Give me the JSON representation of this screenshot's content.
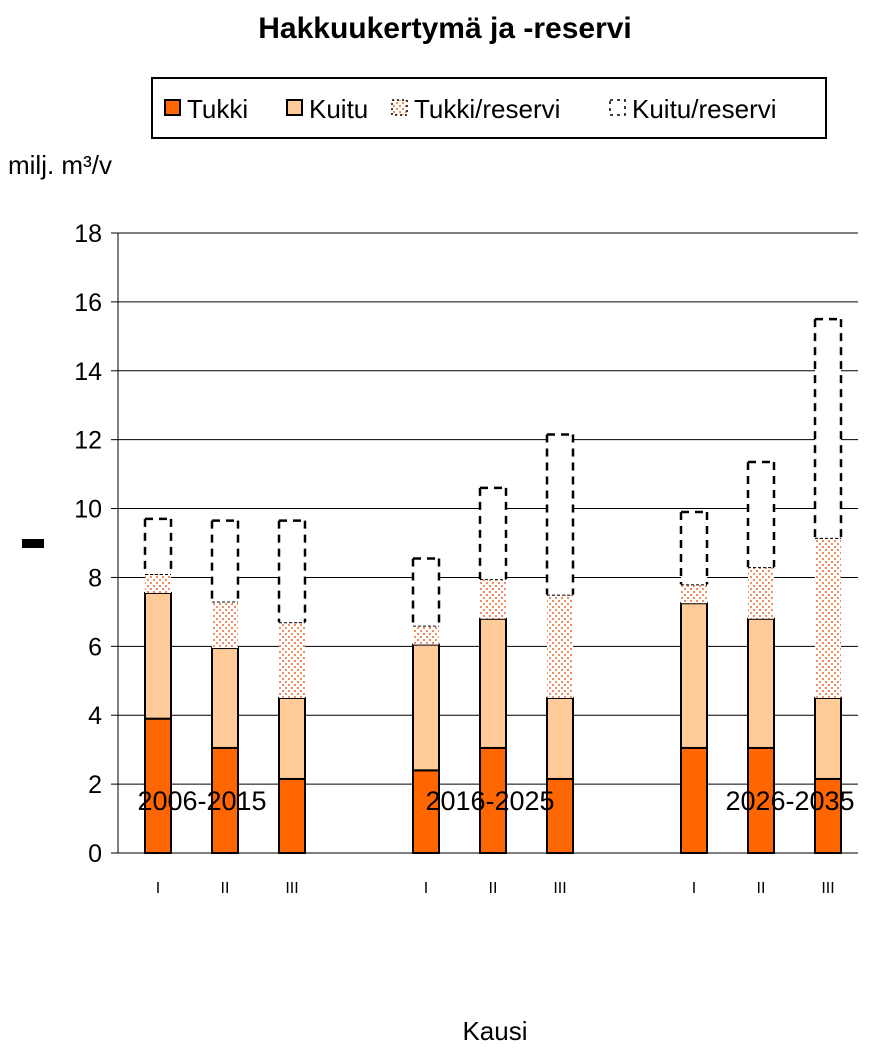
{
  "chart_data": {
    "type": "bar",
    "stacked": true,
    "title": "Hakkuukertymä ja -reservi",
    "ylabel": "milj. m³/v",
    "xlabel": "Kausi",
    "ylim": [
      0,
      18
    ],
    "yticks": [
      0,
      2,
      4,
      6,
      8,
      10,
      12,
      14,
      16,
      18
    ],
    "grid": true,
    "legend_position": "top",
    "groups": [
      "2006-2015",
      "2016-2025",
      "2026-2035"
    ],
    "categories": [
      "I",
      "II",
      "III",
      "I",
      "II",
      "III",
      "I",
      "II",
      "III"
    ],
    "series": [
      {
        "name": "Tukki",
        "color": "#ff6600",
        "pattern": "solid",
        "values": [
          3.9,
          3.05,
          2.15,
          2.4,
          3.05,
          2.15,
          3.05,
          3.05,
          2.15
        ]
      },
      {
        "name": "Kuitu",
        "color": "#ffcc99",
        "pattern": "solid",
        "values": [
          3.65,
          2.9,
          2.35,
          3.65,
          3.75,
          2.35,
          4.2,
          3.75,
          2.35
        ]
      },
      {
        "name": "Tukki/reservi",
        "color": "#f4a070",
        "pattern": "dots",
        "values": [
          0.55,
          1.35,
          2.2,
          0.55,
          1.15,
          3.0,
          0.55,
          1.5,
          4.65
        ]
      },
      {
        "name": "Kuitu/reservi",
        "color": "#000000",
        "pattern": "dashed-outline",
        "values": [
          1.6,
          2.35,
          2.95,
          1.95,
          2.65,
          4.65,
          2.1,
          3.05,
          6.35
        ]
      }
    ]
  }
}
